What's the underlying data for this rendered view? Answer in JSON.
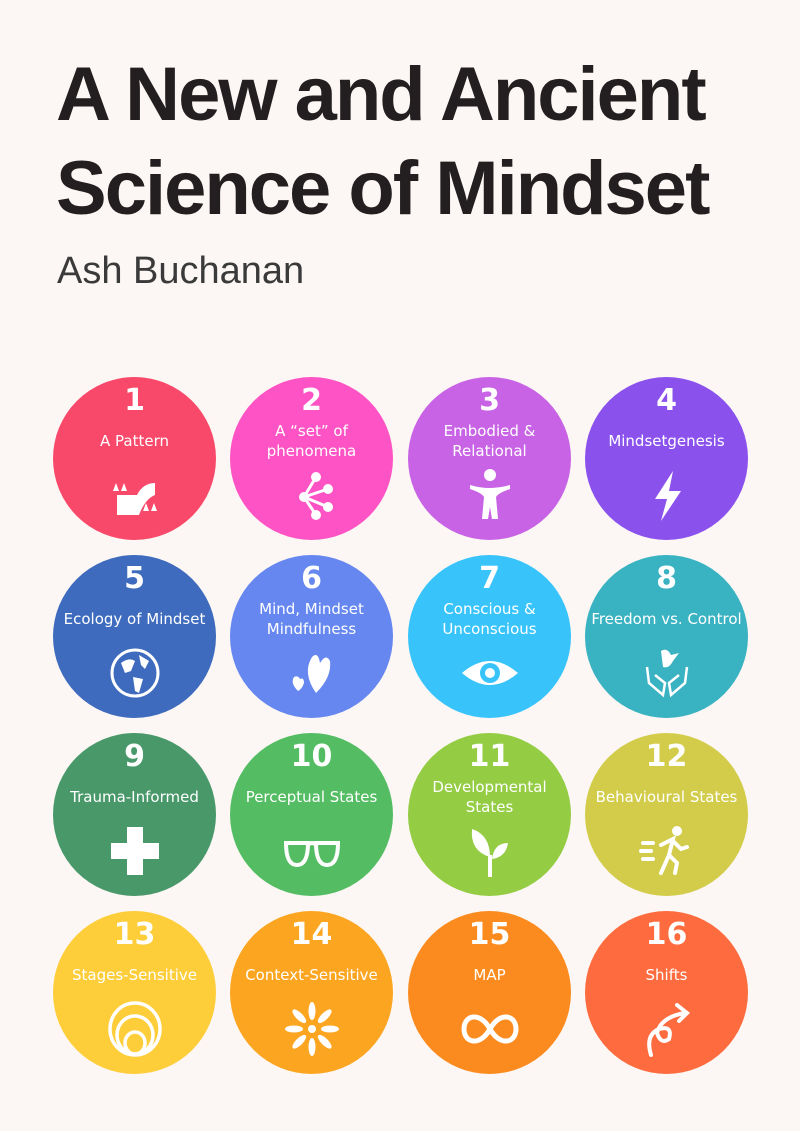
{
  "title_lines": [
    "A New and Ancient",
    "Science of Mindset"
  ],
  "author": "Ash Buchanan",
  "items": [
    {
      "n": "1",
      "label": "A Pattern",
      "color": "#f9496a",
      "icon": "river-landscape"
    },
    {
      "n": "2",
      "label": "A “set” of phenomena",
      "color": "#fe53c4",
      "icon": "network-nodes"
    },
    {
      "n": "3",
      "label": "Embodied & Relational",
      "color": "#c963e5",
      "icon": "person"
    },
    {
      "n": "4",
      "label": "Mindsetgenesis",
      "color": "#8a51ed",
      "icon": "lightning"
    },
    {
      "n": "5",
      "label": "Ecology of Mindset",
      "color": "#3e6bbd",
      "icon": "globe"
    },
    {
      "n": "6",
      "label": "Mind, Mindset Mindfulness",
      "color": "#6587ef",
      "icon": "hearts"
    },
    {
      "n": "7",
      "label": "Conscious & Unconscious",
      "color": "#38c4fb",
      "icon": "eye"
    },
    {
      "n": "8",
      "label": "Freedom vs. Control",
      "color": "#39b2c2",
      "icon": "hands-dove"
    },
    {
      "n": "9",
      "label": "Trauma-Informed",
      "color": "#48986a",
      "icon": "plus-cross"
    },
    {
      "n": "10",
      "label": "Perceptual States",
      "color": "#54bd63",
      "icon": "glasses"
    },
    {
      "n": "11",
      "label": "Developmental States",
      "color": "#94cc43",
      "icon": "sprout"
    },
    {
      "n": "12",
      "label": "Behavioural States",
      "color": "#d2cc4a",
      "icon": "running-person"
    },
    {
      "n": "13",
      "label": "Stages-Sensitive",
      "color": "#fecd3a",
      "icon": "nested-circles"
    },
    {
      "n": "14",
      "label": "Context-Sensitive",
      "color": "#fca520",
      "icon": "sunburst"
    },
    {
      "n": "15",
      "label": "MAP",
      "color": "#fb8b1e",
      "icon": "infinity"
    },
    {
      "n": "16",
      "label": "Shifts",
      "color": "#fd6b3e",
      "icon": "loop-arrow"
    }
  ]
}
